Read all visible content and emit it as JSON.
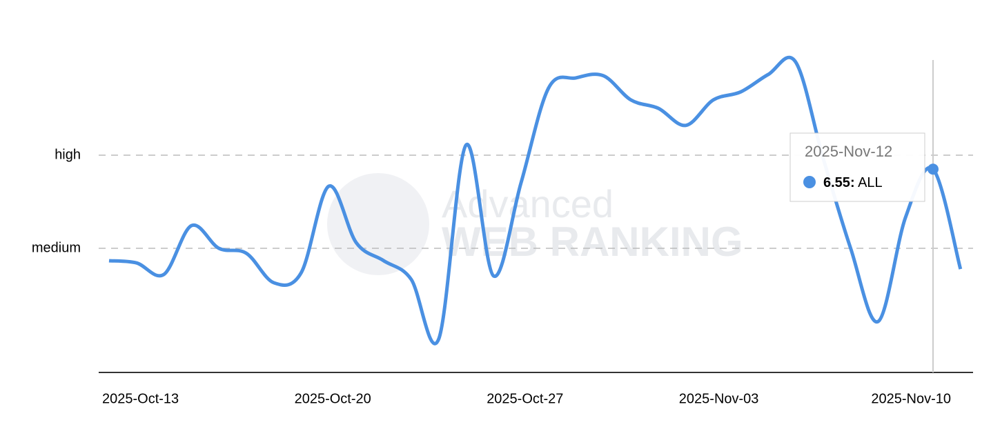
{
  "chart_data": {
    "type": "line",
    "x": [
      "2025-Oct-13",
      "2025-Oct-14",
      "2025-Oct-15",
      "2025-Oct-16",
      "2025-Oct-17",
      "2025-Oct-18",
      "2025-Oct-19",
      "2025-Oct-20",
      "2025-Oct-21",
      "2025-Oct-22",
      "2025-Oct-23",
      "2025-Oct-24",
      "2025-Oct-25",
      "2025-Oct-26",
      "2025-Oct-27",
      "2025-Oct-28",
      "2025-Oct-29",
      "2025-Oct-30",
      "2025-Oct-31",
      "2025-Nov-01",
      "2025-Nov-02",
      "2025-Nov-03",
      "2025-Nov-04",
      "2025-Nov-05",
      "2025-Nov-06",
      "2025-Nov-07",
      "2025-Nov-08",
      "2025-Nov-09",
      "2025-Nov-10",
      "2025-Nov-11",
      "2025-Nov-12",
      "2025-Nov-13"
    ],
    "series": [
      {
        "name": "ALL",
        "color": "#4a90e2",
        "values": [
          3.6,
          3.53,
          3.16,
          4.73,
          4.0,
          3.84,
          2.89,
          3.22,
          6.0,
          4.18,
          3.6,
          3.0,
          1.07,
          7.33,
          3.11,
          6.11,
          9.16,
          9.49,
          9.56,
          8.78,
          8.51,
          7.96,
          8.78,
          9.04,
          9.6,
          10.0,
          6.9,
          4.0,
          1.64,
          5.0,
          6.55,
          3.33
        ]
      }
    ],
    "ylim": [
      0,
      10
    ],
    "yticks": [
      {
        "value": 4,
        "label": "medium"
      },
      {
        "value": 7,
        "label": "high"
      }
    ],
    "grid": true,
    "watermark": [
      "Advanced",
      "WEB RANKING"
    ]
  }
}
